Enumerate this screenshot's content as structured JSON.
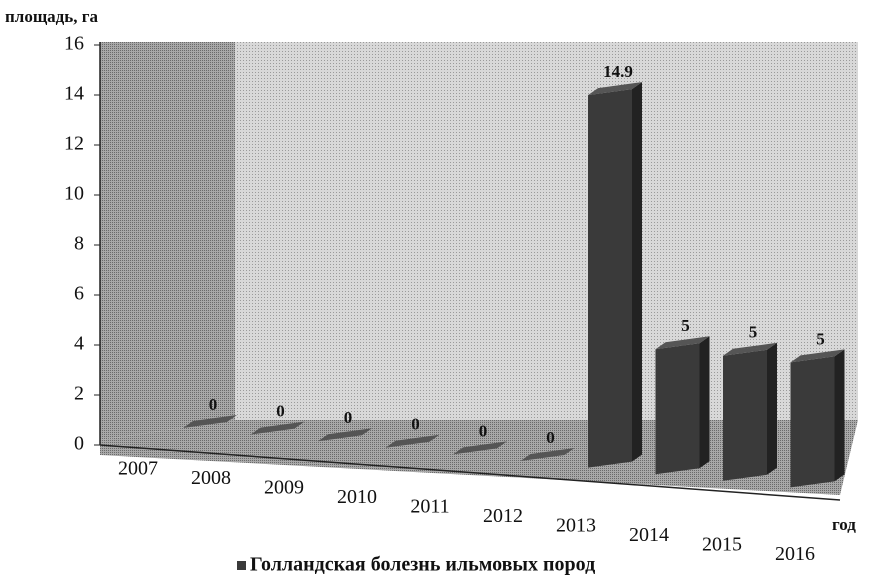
{
  "chart_data": {
    "type": "bar3d",
    "y_label": "площадь, га",
    "x_label": "год",
    "categories": [
      "2007",
      "2008",
      "2009",
      "2010",
      "2011",
      "2012",
      "2013",
      "2014",
      "2015",
      "2016"
    ],
    "series": [
      {
        "name": "Голландская болезнь ильмовых пород",
        "color": "#3a3a3a",
        "values": [
          0,
          0,
          0,
          0,
          0,
          0,
          14.9,
          5,
          5,
          5
        ]
      }
    ],
    "ylim": [
      0,
      16
    ],
    "yticks": [
      0,
      2,
      4,
      6,
      8,
      10,
      12,
      14,
      16
    ]
  }
}
